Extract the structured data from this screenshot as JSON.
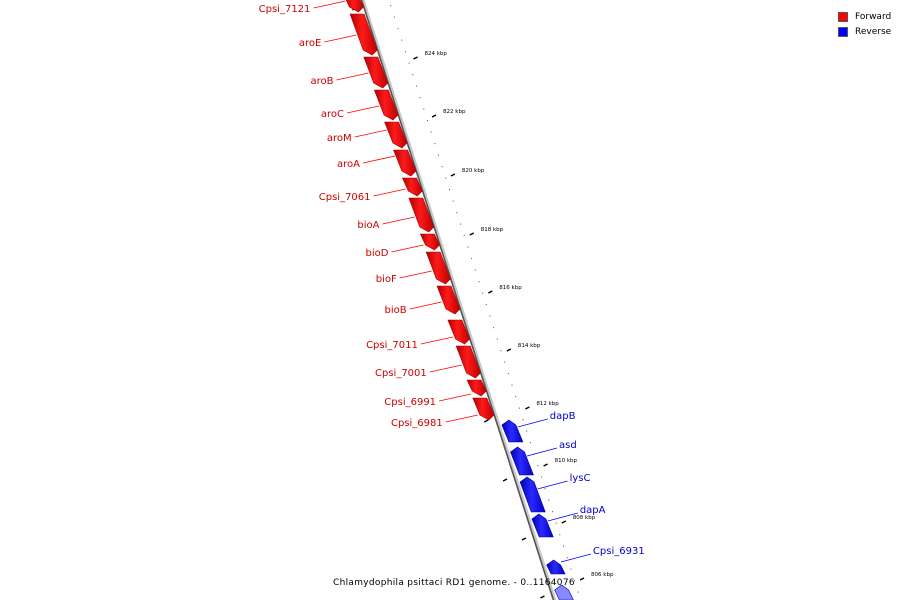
{
  "legend": {
    "forward_label": "Forward",
    "reverse_label": "Reverse",
    "forward_color": "#ff0000",
    "reverse_color": "#0000ff"
  },
  "caption": "Chlamydophila psittaci RD1 genome. - 0..1164076",
  "tick_labels": [
    "824 kbp",
    "822 kbp",
    "820 kbp",
    "818 kbp",
    "816 kbp",
    "814 kbp",
    "812 kbp",
    "810 kbp",
    "808 kbp",
    "806 kbp"
  ],
  "forward_genes": [
    "Cpsi_7121",
    "aroE",
    "aroB",
    "aroC",
    "aroM",
    "aroA",
    "Cpsi_7061",
    "bioA",
    "bioD",
    "bioF",
    "bioB",
    "Cpsi_7011",
    "Cpsi_7001",
    "Cpsi_6991",
    "Cpsi_6981"
  ],
  "reverse_genes": [
    "dapB",
    "asd",
    "lysC",
    "dapA",
    "Cpsi_6931"
  ]
}
